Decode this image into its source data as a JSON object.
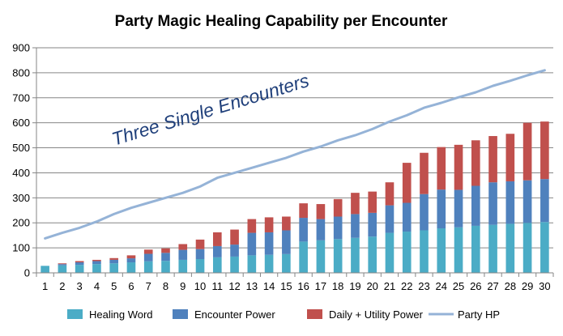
{
  "chart_data": {
    "type": "bar",
    "stacked": true,
    "title": "Party Magic Healing Capability per Encounter",
    "xlabel": "",
    "ylabel": "",
    "ylim": [
      0,
      900
    ],
    "yticks": [
      0,
      100,
      200,
      300,
      400,
      500,
      600,
      700,
      800,
      900
    ],
    "categories": [
      "1",
      "2",
      "3",
      "4",
      "5",
      "6",
      "7",
      "8",
      "9",
      "10",
      "11",
      "12",
      "13",
      "14",
      "15",
      "16",
      "17",
      "18",
      "19",
      "20",
      "21",
      "22",
      "23",
      "24",
      "25",
      "26",
      "27",
      "28",
      "29",
      "30"
    ],
    "grid": "horizontal",
    "legend": "bottom",
    "series": [
      {
        "name": "Healing Word",
        "type": "bar",
        "color": "#4bacc6",
        "values": [
          28,
          30,
          32,
          35,
          38,
          42,
          46,
          48,
          52,
          55,
          62,
          65,
          70,
          72,
          75,
          125,
          130,
          135,
          140,
          145,
          160,
          165,
          170,
          178,
          182,
          188,
          192,
          196,
          200,
          203
        ]
      },
      {
        "name": "Encounter Power",
        "type": "bar",
        "color": "#4f81bd",
        "values": [
          0,
          5,
          10,
          12,
          14,
          16,
          30,
          32,
          40,
          40,
          45,
          48,
          90,
          90,
          95,
          95,
          85,
          90,
          95,
          95,
          110,
          115,
          145,
          155,
          150,
          160,
          170,
          170,
          170,
          172
        ]
      },
      {
        "name": "Daily + Utility Power",
        "type": "bar",
        "color": "#c0504d",
        "values": [
          0,
          3,
          5,
          5,
          7,
          12,
          17,
          18,
          23,
          38,
          55,
          60,
          55,
          60,
          55,
          58,
          60,
          70,
          85,
          85,
          92,
          160,
          165,
          170,
          180,
          182,
          185,
          190,
          230,
          230
        ]
      },
      {
        "name": "Party HP",
        "type": "line",
        "color": "#95b3d7",
        "values": [
          138,
          160,
          180,
          205,
          235,
          260,
          280,
          300,
          320,
          345,
          380,
          400,
          420,
          440,
          460,
          485,
          505,
          530,
          550,
          575,
          605,
          630,
          660,
          680,
          702,
          722,
          748,
          768,
          790,
          810
        ]
      }
    ],
    "annotations": [
      {
        "text": "Three Single Encounters"
      }
    ]
  }
}
